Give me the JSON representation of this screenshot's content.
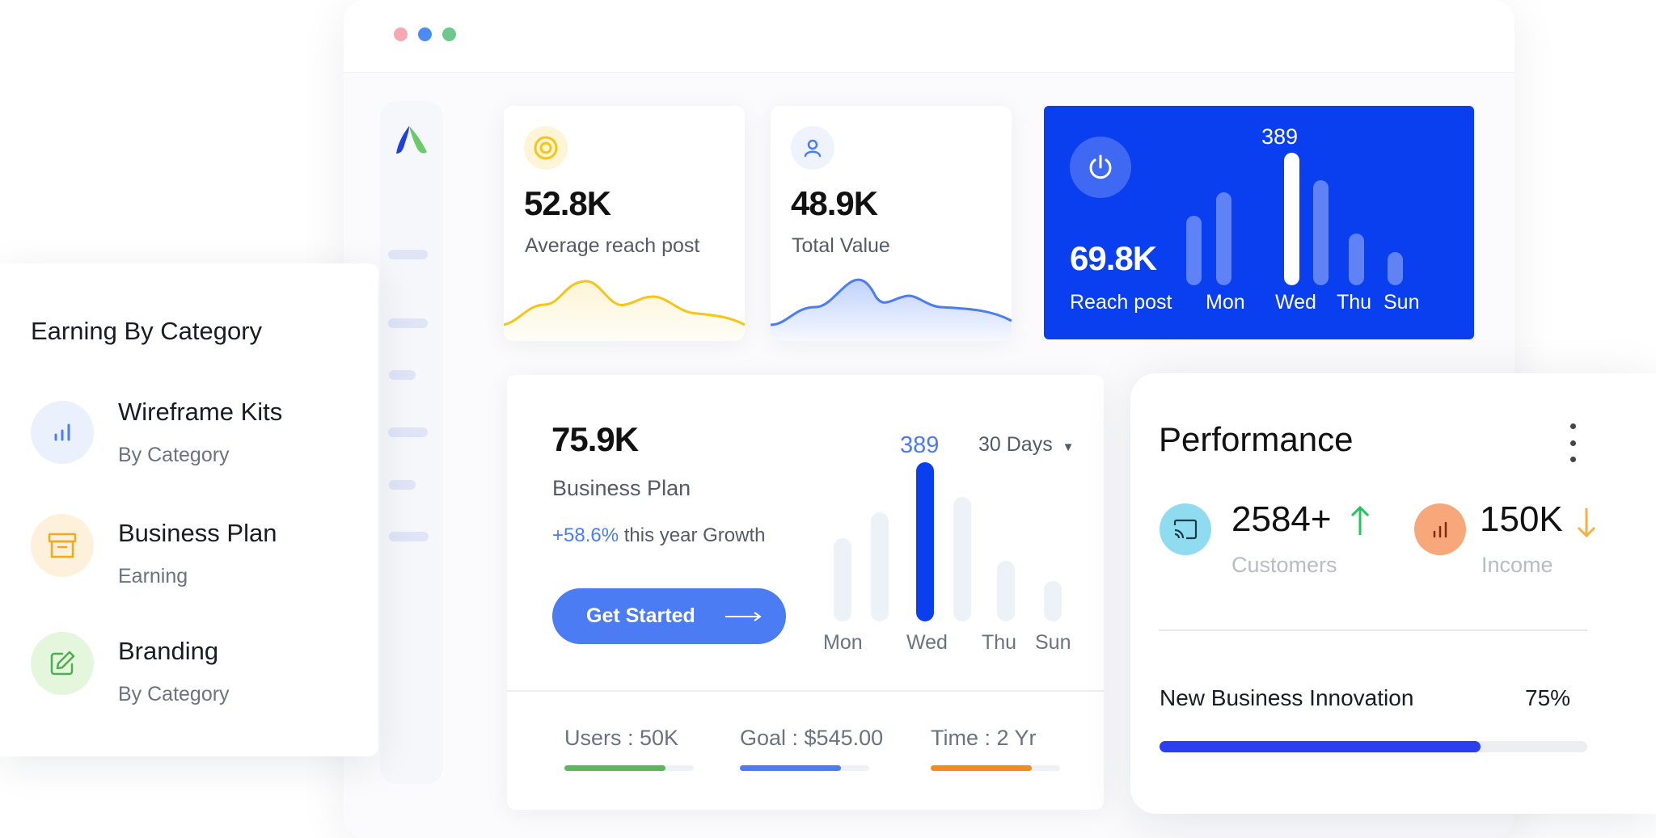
{
  "window": {
    "traffic_lights": [
      {
        "name": "close",
        "color": "#f7a8b0"
      },
      {
        "name": "minimize",
        "color": "#4b8bf5"
      },
      {
        "name": "maximize",
        "color": "#6cc98c"
      }
    ]
  },
  "stats": [
    {
      "value": "52.8K",
      "label": "Average reach post",
      "icon": "target-icon",
      "accent": "#f5c518"
    },
    {
      "value": "48.9K",
      "label": "Total Value",
      "icon": "user-icon",
      "accent": "#4b7cf3"
    }
  ],
  "reach_card": {
    "value": "69.8K",
    "label": "Reach post",
    "peak_label": "389",
    "days": [
      "Mon",
      "Wed",
      "Thu",
      "Sun"
    ],
    "icon": "power-icon",
    "background": "#0a3ff0"
  },
  "categories": {
    "title": "Earning By Category",
    "items": [
      {
        "name": "Wireframe Kits",
        "sub": "By Category",
        "icon": "bar-chart-icon",
        "color": "#4b7cf3"
      },
      {
        "name": "Business Plan",
        "sub": "Earning",
        "icon": "archive-box-icon",
        "color": "#f5a623"
      },
      {
        "name": "Branding",
        "sub": "By Category",
        "icon": "edit-icon",
        "color": "#4caf50"
      }
    ]
  },
  "business": {
    "value": "75.9K",
    "label": "Business Plan",
    "growth_value": "+58.6%",
    "growth_text": " this year Growth",
    "cta_label": "Get Started",
    "peak_label": "389",
    "period_select": "30 Days",
    "days": [
      "Mon",
      "Wed",
      "Thu",
      "Sun"
    ],
    "stats": [
      {
        "label": "Users : 50K",
        "progress": 0.78,
        "color": "#5cb85c"
      },
      {
        "label": "Goal : $545.00",
        "progress": 0.78,
        "color": "#4b7cf3"
      },
      {
        "label": "Time : 2 Yr",
        "progress": 0.78,
        "color": "#f28c1a"
      }
    ]
  },
  "performance": {
    "title": "Performance",
    "metrics": [
      {
        "value": "2584+",
        "label": "Customers",
        "trend": "up",
        "trend_color": "#22c55e",
        "icon": "cast-icon",
        "icon_bg": "#8fdcf0"
      },
      {
        "value": "150K",
        "label": "Income",
        "trend": "down",
        "trend_color": "#f5b042",
        "icon": "bar-chart-icon",
        "icon_bg": "#f7a77a"
      }
    ],
    "progress_label": "New Business Innovation",
    "progress_value": "75%",
    "progress": 0.75
  }
}
